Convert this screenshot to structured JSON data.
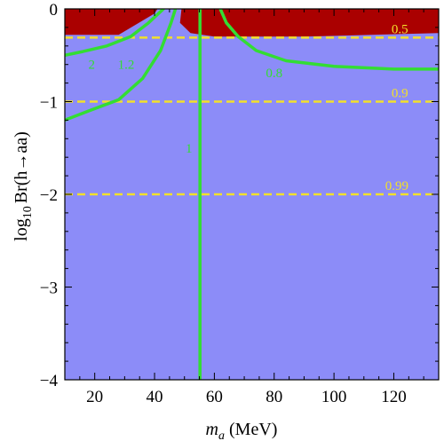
{
  "chart_data": {
    "type": "contour",
    "xlabel_main": "m",
    "xlabel_sub": "a",
    "xlabel_unit": " (MeV)",
    "ylabel_parts": [
      "log",
      "10",
      "Br(h→aa)"
    ],
    "xlim": [
      10,
      135
    ],
    "ylim": [
      -4,
      0
    ],
    "x_ticks": [
      {
        "value": 20,
        "label": "20"
      },
      {
        "value": 40,
        "label": "40"
      },
      {
        "value": 60,
        "label": "60"
      },
      {
        "value": 80,
        "label": "80"
      },
      {
        "value": 100,
        "label": "100"
      },
      {
        "value": 120,
        "label": "120"
      }
    ],
    "y_ticks": [
      {
        "value": 0,
        "label": "0"
      },
      {
        "value": -1,
        "label": "−1"
      },
      {
        "value": -2,
        "label": "−2"
      },
      {
        "value": -3,
        "label": "−3"
      },
      {
        "value": -4,
        "label": "−4"
      }
    ],
    "colors": {
      "background_region": "#8c8cf8",
      "excluded_region": "#aa0000",
      "green_contours": "#33dd33",
      "yellow_lines": "#f2e02a",
      "frame": "#000000"
    },
    "excluded_region": {
      "name": "excluded",
      "boundary_left": [
        [
          10,
          0
        ],
        [
          10,
          -0.28
        ],
        [
          28,
          -0.28
        ],
        [
          40,
          -0.05
        ],
        [
          41,
          0
        ]
      ],
      "boundary_right": [
        [
          49,
          0
        ],
        [
          48.5,
          -0.15
        ],
        [
          52,
          -0.26
        ],
        [
          60,
          -0.3
        ],
        [
          90,
          -0.3
        ],
        [
          135,
          -0.26
        ],
        [
          135,
          0
        ]
      ]
    },
    "yellow_lines": [
      {
        "y": -0.31,
        "label": "0.5",
        "label_x": 122
      },
      {
        "y": -1.0,
        "label": "0.9",
        "label_x": 122
      },
      {
        "y": -2.0,
        "label": "0.99",
        "label_x": 121
      }
    ],
    "green_contours": [
      {
        "label": "2",
        "label_pos": [
          19,
          -0.6
        ],
        "points": [
          [
            10,
            -0.5
          ],
          [
            16,
            -0.46
          ],
          [
            24,
            -0.4
          ],
          [
            32,
            -0.3
          ],
          [
            38,
            -0.15
          ],
          [
            43,
            0
          ]
        ]
      },
      {
        "label": "1.2",
        "label_pos": [
          30.5,
          -0.6
        ],
        "points": [
          [
            10,
            -1.2
          ],
          [
            18,
            -1.1
          ],
          [
            28,
            -0.98
          ],
          [
            36,
            -0.75
          ],
          [
            42,
            -0.45
          ],
          [
            45.5,
            -0.15
          ],
          [
            47,
            0
          ]
        ]
      },
      {
        "label": "1",
        "label_pos": [
          51.5,
          -1.5
        ],
        "points": [
          [
            55.2,
            0
          ],
          [
            55.2,
            -4
          ]
        ]
      },
      {
        "label": "0.8",
        "label_pos": [
          80,
          -0.69
        ],
        "points": [
          [
            62,
            0
          ],
          [
            64,
            -0.15
          ],
          [
            68,
            -0.3
          ],
          [
            74,
            -0.45
          ],
          [
            84,
            -0.56
          ],
          [
            100,
            -0.62
          ],
          [
            120,
            -0.65
          ],
          [
            135,
            -0.65
          ]
        ]
      }
    ]
  }
}
